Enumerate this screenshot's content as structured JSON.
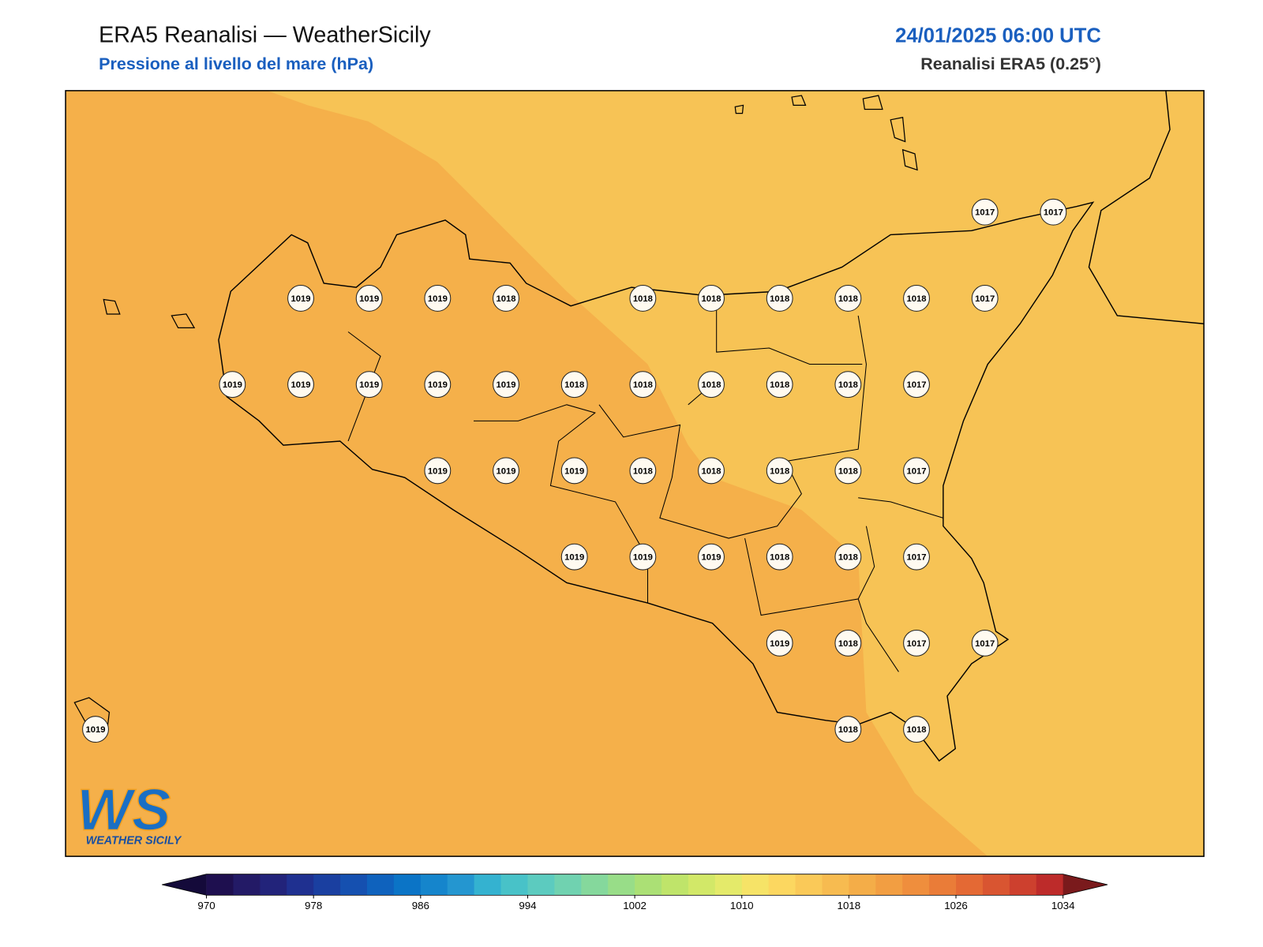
{
  "header": {
    "title": "ERA5 Reanalisi — WeatherSicily",
    "subtitle": "Pressione al livello del mare (hPa)",
    "date": "24/01/2025 06:00 UTC",
    "source": "Reanalisi ERA5 (0.25°)"
  },
  "stations": [
    1017,
    1017,
    1019,
    1019,
    1019,
    1018,
    1018,
    1018,
    1018,
    1018,
    1018,
    1017,
    1019,
    1019,
    1019,
    1019,
    1019,
    1018,
    1018,
    1018,
    1018,
    1018,
    1017,
    1019,
    1019,
    1019,
    1018,
    1018,
    1018,
    1018,
    1017,
    1019,
    1019,
    1019,
    1018,
    1018,
    1017,
    1019,
    1018,
    1017,
    1017,
    1019,
    1018,
    1018
  ],
  "colorbar": {
    "ticks": [
      970,
      978,
      986,
      994,
      1002,
      1010,
      1018,
      1026,
      1034
    ],
    "colors": [
      "#1e0f4f",
      "#231a66",
      "#22237a",
      "#1f3090",
      "#1a3fa0",
      "#1550b0",
      "#0f62bd",
      "#0b74c6",
      "#1585cc",
      "#2496d0",
      "#34b2d0",
      "#48c2c8",
      "#5ccbbf",
      "#70d2b0",
      "#85d89c",
      "#98dd88",
      "#abe075",
      "#bfe46a",
      "#d2e868",
      "#e4ea6a",
      "#f6e367",
      "#fcd760",
      "#fac958",
      "#f7bb50",
      "#f4ad48",
      "#f29e42",
      "#ef8e3d",
      "#ea7c38",
      "#e46934",
      "#d95531",
      "#cd402e",
      "#bd2b2a"
    ],
    "under": "#140a3a",
    "over": "#7a1a1c"
  },
  "logo": {
    "mark": "WS",
    "text": "WEATHER SICILY"
  }
}
